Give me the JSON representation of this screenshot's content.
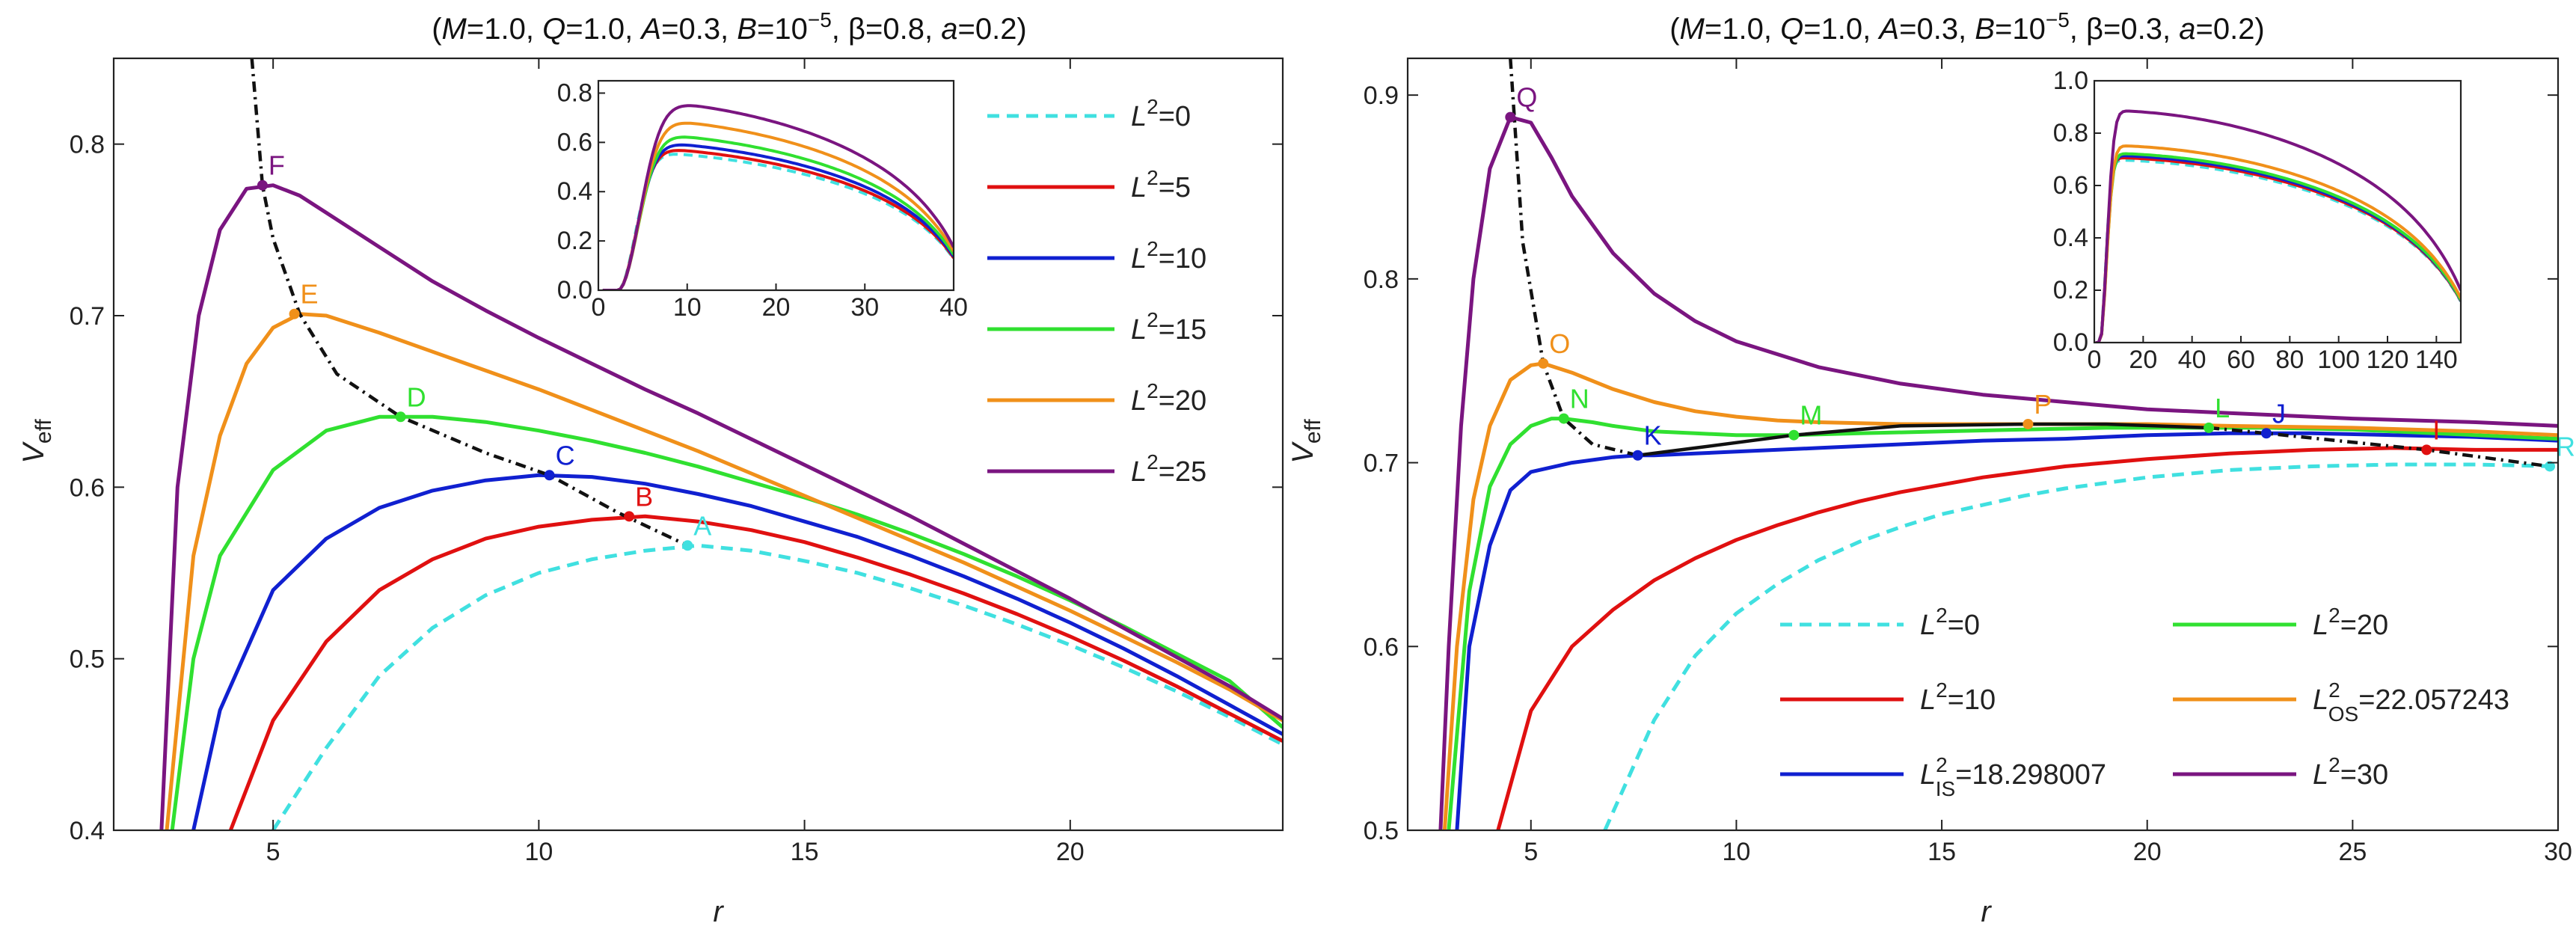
{
  "chart_data": [
    {
      "type": "line",
      "title": "(M=1.0, Q=1.0, A=0.3, B=10^{-5}, β=0.8, a=0.2)",
      "title_parts": {
        "p1": "(",
        "M": "M",
        "p2": "=1.0, ",
        "Q": "Q",
        "p3": "=1.0, ",
        "A": "A",
        "p4": "=0.3, ",
        "B": "B",
        "p5": "=10",
        "Bexp": "−5",
        "p6": ", β=0.8, ",
        "a": "a",
        "p7": "=0.2)"
      },
      "xlabel": "r",
      "ylabel": "V",
      "ylabel_sub": "eff",
      "xlim": [
        2.0,
        24.0
      ],
      "ylim": [
        0.4,
        0.85
      ],
      "xticks": [
        5,
        10,
        15,
        20
      ],
      "yticks": [
        0.4,
        0.5,
        0.6,
        0.7,
        0.8
      ],
      "legend": "top-right",
      "legend_items": [
        {
          "label": "L2=0",
          "sym": "L",
          "sup": "2",
          "rest": "=0",
          "color": "#40E0E0",
          "dashed": true
        },
        {
          "label": "L2=5",
          "sym": "L",
          "sup": "2",
          "rest": "=5",
          "color": "#E01010",
          "dashed": false
        },
        {
          "label": "L2=10",
          "sym": "L",
          "sup": "2",
          "rest": "=10",
          "color": "#1020D0",
          "dashed": false
        },
        {
          "label": "L2=15",
          "sym": "L",
          "sup": "2",
          "rest": "=15",
          "color": "#30E030",
          "dashed": false
        },
        {
          "label": "L2=20",
          "sym": "L",
          "sup": "2",
          "rest": "=20",
          "color": "#F0901A",
          "dashed": false
        },
        {
          "label": "L2=25",
          "sym": "L",
          "sup": "2",
          "rest": "=25",
          "color": "#7A1580",
          "dashed": false
        }
      ],
      "series": [
        {
          "name": "L2=0",
          "color": "#40E0E0",
          "dashed": true,
          "x": [
            5.0,
            6,
            7,
            8,
            9,
            10,
            11,
            12,
            13,
            14,
            15,
            16,
            17,
            18,
            19,
            20,
            21,
            22,
            23,
            24
          ],
          "y": [
            0.4,
            0.448,
            0.49,
            0.518,
            0.537,
            0.55,
            0.558,
            0.563,
            0.566,
            0.563,
            0.557,
            0.55,
            0.541,
            0.531,
            0.52,
            0.508,
            0.495,
            0.481,
            0.466,
            0.45
          ]
        },
        {
          "name": "L2=5",
          "color": "#E01010",
          "dashed": false,
          "x": [
            4.2,
            5,
            6,
            7,
            8,
            9,
            10,
            11,
            12,
            13,
            14,
            15,
            16,
            17,
            18,
            19,
            20,
            21,
            22,
            23,
            24
          ],
          "y": [
            0.4,
            0.464,
            0.51,
            0.54,
            0.558,
            0.57,
            0.577,
            0.581,
            0.583,
            0.58,
            0.575,
            0.568,
            0.559,
            0.549,
            0.538,
            0.526,
            0.513,
            0.499,
            0.484,
            0.468,
            0.452
          ]
        },
        {
          "name": "L2=10",
          "color": "#1020D0",
          "dashed": false,
          "x": [
            3.5,
            4,
            5,
            6,
            7,
            8,
            9,
            10,
            11,
            12,
            13,
            14,
            15,
            16,
            17,
            18,
            19,
            20,
            21,
            22,
            23,
            24
          ],
          "y": [
            0.4,
            0.47,
            0.54,
            0.57,
            0.588,
            0.598,
            0.604,
            0.607,
            0.606,
            0.602,
            0.596,
            0.589,
            0.58,
            0.571,
            0.56,
            0.548,
            0.535,
            0.521,
            0.506,
            0.49,
            0.473,
            0.456
          ]
        },
        {
          "name": "L2=15",
          "color": "#30E030",
          "dashed": false,
          "x": [
            3.1,
            3.5,
            4,
            5,
            6,
            7,
            8,
            9,
            10,
            11,
            12,
            13,
            14,
            15,
            16,
            17,
            18,
            19,
            20,
            21,
            22,
            23,
            24
          ],
          "y": [
            0.4,
            0.5,
            0.56,
            0.61,
            0.633,
            0.641,
            0.641,
            0.638,
            0.633,
            0.627,
            0.62,
            0.612,
            0.603,
            0.594,
            0.584,
            0.573,
            0.561,
            0.548,
            0.534,
            0.519,
            0.503,
            0.487,
            0.46
          ]
        },
        {
          "name": "L2=20",
          "color": "#F0901A",
          "dashed": false,
          "x": [
            3.0,
            3.5,
            4,
            4.5,
            5,
            5.5,
            6,
            7,
            8,
            9,
            10,
            11,
            12,
            13,
            14,
            15,
            16,
            17,
            18,
            19,
            20,
            21,
            22,
            23,
            24
          ],
          "y": [
            0.4,
            0.56,
            0.63,
            0.672,
            0.693,
            0.701,
            0.7,
            0.69,
            0.679,
            0.668,
            0.657,
            0.645,
            0.633,
            0.621,
            0.608,
            0.595,
            0.582,
            0.569,
            0.556,
            0.542,
            0.528,
            0.513,
            0.498,
            0.482,
            0.464
          ]
        },
        {
          "name": "L2=25",
          "color": "#7A1580",
          "dashed": false,
          "x": [
            2.9,
            3.2,
            3.6,
            4,
            4.5,
            5,
            5.5,
            6,
            7,
            8,
            9,
            10,
            11,
            12,
            13,
            14,
            15,
            16,
            17,
            18,
            19,
            20,
            21,
            22,
            23,
            24
          ],
          "y": [
            0.4,
            0.6,
            0.7,
            0.75,
            0.774,
            0.776,
            0.77,
            0.76,
            0.74,
            0.72,
            0.703,
            0.687,
            0.672,
            0.657,
            0.643,
            0.628,
            0.613,
            0.598,
            0.583,
            0.567,
            0.551,
            0.535,
            0.518,
            0.501,
            0.484,
            0.465
          ]
        },
        {
          "name": "extremum locus",
          "color": "#111111",
          "dotdash": true,
          "x": [
            4.6,
            4.8,
            5.0,
            5.5,
            6.2,
            7.4,
            9.0,
            10.2,
            11.5,
            12.8
          ],
          "y": [
            0.85,
            0.776,
            0.745,
            0.701,
            0.666,
            0.641,
            0.62,
            0.607,
            0.585,
            0.566
          ]
        }
      ],
      "points": [
        {
          "label": "A",
          "x": 12.8,
          "y": 0.566,
          "color": "#40E0E0"
        },
        {
          "label": "B",
          "x": 11.7,
          "y": 0.583,
          "color": "#E01010"
        },
        {
          "label": "C",
          "x": 10.2,
          "y": 0.607,
          "color": "#1020D0"
        },
        {
          "label": "D",
          "x": 7.4,
          "y": 0.641,
          "color": "#30E030"
        },
        {
          "label": "E",
          "x": 5.4,
          "y": 0.701,
          "color": "#F0901A"
        },
        {
          "label": "F",
          "x": 4.8,
          "y": 0.776,
          "color": "#7A1580"
        }
      ],
      "inset": {
        "xlim": [
          0,
          40
        ],
        "ylim": [
          0,
          0.85
        ],
        "xticks": [
          0,
          10,
          20,
          30,
          40
        ],
        "yticks": [
          0.0,
          0.2,
          0.4,
          0.6,
          0.8
        ]
      }
    },
    {
      "type": "line",
      "title": "(M=1.0, Q=1.0, A=0.3, B=10^{-5}, β=0.3, a=0.2)",
      "title_parts": {
        "p1": "(",
        "M": "M",
        "p2": "=1.0, ",
        "Q": "Q",
        "p3": "=1.0, ",
        "A": "A",
        "p4": "=0.3, ",
        "B": "B",
        "p5": "=10",
        "Bexp": "−5",
        "p6": ", β=0.3, ",
        "a": "a",
        "p7": "=0.2)"
      },
      "xlabel": "r",
      "ylabel": "V",
      "ylabel_sub": "eff",
      "xlim": [
        2.0,
        30.0
      ],
      "ylim": [
        0.5,
        0.92
      ],
      "xticks": [
        5,
        10,
        15,
        20,
        25,
        30
      ],
      "yticks": [
        0.5,
        0.6,
        0.7,
        0.8,
        0.9
      ],
      "legend": "bottom-right",
      "legend_items": [
        {
          "label": "L2=0",
          "sym": "L",
          "sup": "2",
          "rest": "=0",
          "color": "#40E0E0",
          "dashed": true
        },
        {
          "label": "L2=20",
          "sym": "L",
          "sup": "2",
          "rest": "=20",
          "color": "#30E030",
          "dashed": false
        },
        {
          "label": "L2=10",
          "sym": "L",
          "sup": "2",
          "rest": "=10",
          "color": "#E01010",
          "dashed": false
        },
        {
          "label": "L2OS=22.057243",
          "sym": "L",
          "sup": "2",
          "sub": "OS",
          "rest": "=22.057243",
          "color": "#F0901A",
          "dashed": false
        },
        {
          "label": "L2IS=18.298007",
          "sym": "L",
          "sup": "2",
          "sub": "IS",
          "rest": "=18.298007",
          "color": "#1020D0",
          "dashed": false
        },
        {
          "label": "L2=30",
          "sym": "L",
          "sup": "2",
          "rest": "=30",
          "color": "#7A1580",
          "dashed": false
        }
      ],
      "series": [
        {
          "name": "L2=0",
          "color": "#40E0E0",
          "dashed": true,
          "x": [
            6.8,
            8,
            9,
            10,
            11,
            12,
            13,
            14,
            15,
            16,
            17,
            18,
            19,
            20,
            22,
            24,
            26,
            28,
            30
          ],
          "y": [
            0.5,
            0.56,
            0.595,
            0.618,
            0.634,
            0.647,
            0.657,
            0.665,
            0.672,
            0.677,
            0.682,
            0.686,
            0.689,
            0.692,
            0.696,
            0.698,
            0.699,
            0.699,
            0.698
          ]
        },
        {
          "name": "L2=10",
          "color": "#E01010",
          "dashed": false,
          "x": [
            4.2,
            5,
            6,
            7,
            8,
            9,
            10,
            11,
            12,
            13,
            14,
            15,
            16,
            17,
            18,
            19,
            20,
            22,
            24,
            26,
            28,
            30
          ],
          "y": [
            0.5,
            0.565,
            0.6,
            0.62,
            0.636,
            0.648,
            0.658,
            0.666,
            0.673,
            0.679,
            0.684,
            0.688,
            0.692,
            0.695,
            0.698,
            0.7,
            0.702,
            0.705,
            0.707,
            0.708,
            0.707,
            0.707
          ]
        },
        {
          "name": "L2IS=18.298007",
          "color": "#1020D0",
          "dashed": false,
          "x": [
            3.2,
            3.5,
            4,
            4.5,
            5,
            6,
            7,
            7.6,
            8,
            9,
            10,
            12,
            14,
            16,
            18,
            20,
            22,
            22.9,
            24,
            26,
            28,
            30
          ],
          "y": [
            0.5,
            0.6,
            0.655,
            0.685,
            0.695,
            0.7,
            0.703,
            0.704,
            0.704,
            0.705,
            0.706,
            0.708,
            0.71,
            0.712,
            0.713,
            0.715,
            0.716,
            0.716,
            0.716,
            0.715,
            0.714,
            0.712
          ]
        },
        {
          "name": "L2=20",
          "color": "#30E030",
          "dashed": false,
          "x": [
            3.0,
            3.5,
            4,
            4.5,
            5,
            5.5,
            5.8,
            6.5,
            7,
            8,
            9,
            10,
            11.4,
            13,
            15,
            17,
            19,
            21,
            21.5,
            23,
            25,
            27,
            30
          ],
          "y": [
            0.5,
            0.63,
            0.687,
            0.71,
            0.72,
            0.724,
            0.724,
            0.722,
            0.72,
            0.717,
            0.716,
            0.715,
            0.715,
            0.716,
            0.717,
            0.718,
            0.719,
            0.719,
            0.719,
            0.719,
            0.718,
            0.716,
            0.713
          ]
        },
        {
          "name": "L2OS=22.057243",
          "color": "#F0901A",
          "dashed": false,
          "x": [
            2.9,
            3.2,
            3.6,
            4,
            4.5,
            5,
            5.3,
            6,
            7,
            8,
            9,
            10,
            11,
            12,
            14,
            16,
            17.1,
            18,
            20,
            22,
            25,
            28,
            30
          ],
          "y": [
            0.5,
            0.6,
            0.68,
            0.72,
            0.745,
            0.753,
            0.754,
            0.749,
            0.74,
            0.733,
            0.728,
            0.725,
            0.723,
            0.722,
            0.721,
            0.721,
            0.721,
            0.721,
            0.721,
            0.72,
            0.719,
            0.717,
            0.715
          ]
        },
        {
          "name": "L2=30",
          "color": "#7A1580",
          "dashed": false,
          "x": [
            2.8,
            3.0,
            3.3,
            3.6,
            4.0,
            4.5,
            5.0,
            5.5,
            6,
            7,
            8,
            9,
            10,
            12,
            14,
            16,
            18,
            20,
            22,
            25,
            28,
            30
          ],
          "y": [
            0.5,
            0.6,
            0.72,
            0.8,
            0.86,
            0.888,
            0.885,
            0.866,
            0.845,
            0.814,
            0.792,
            0.777,
            0.766,
            0.752,
            0.743,
            0.737,
            0.733,
            0.729,
            0.727,
            0.724,
            0.722,
            0.72
          ]
        },
        {
          "name": "stable locus",
          "color": "#111111",
          "dotdash": false,
          "x": [
            7.6,
            9,
            11.4,
            14,
            17.1,
            19,
            21.5
          ],
          "y": [
            0.704,
            0.708,
            0.715,
            0.72,
            0.721,
            0.721,
            0.719
          ]
        },
        {
          "name": "unstable locus",
          "color": "#111111",
          "dotdash": true,
          "x": [
            4.5,
            4.8,
            5.3,
            5.8,
            6.5,
            7.6
          ],
          "y": [
            0.92,
            0.82,
            0.754,
            0.724,
            0.71,
            0.704
          ]
        },
        {
          "name": "unstable outer locus",
          "color": "#111111",
          "dotdash": true,
          "x": [
            21.5,
            22.9,
            26.8,
            29.8
          ],
          "y": [
            0.719,
            0.716,
            0.707,
            0.698
          ]
        }
      ],
      "points": [
        {
          "label": "K",
          "x": 7.6,
          "y": 0.704,
          "color": "#1020D0"
        },
        {
          "label": "J",
          "x": 22.9,
          "y": 0.716,
          "color": "#1020D0"
        },
        {
          "label": "M",
          "x": 11.4,
          "y": 0.715,
          "color": "#30E030"
        },
        {
          "label": "N",
          "x": 5.8,
          "y": 0.724,
          "color": "#30E030"
        },
        {
          "label": "L",
          "x": 21.5,
          "y": 0.719,
          "color": "#30E030"
        },
        {
          "label": "O",
          "x": 5.3,
          "y": 0.754,
          "color": "#F0901A"
        },
        {
          "label": "P",
          "x": 17.1,
          "y": 0.721,
          "color": "#F0901A"
        },
        {
          "label": "Q",
          "x": 4.5,
          "y": 0.888,
          "color": "#7A1580"
        },
        {
          "label": "I",
          "x": 26.8,
          "y": 0.707,
          "color": "#E01010"
        },
        {
          "label": "R",
          "x": 29.8,
          "y": 0.698,
          "color": "#40E0E0"
        }
      ],
      "inset": {
        "xlim": [
          0,
          150
        ],
        "ylim": [
          0,
          1.0
        ],
        "xticks": [
          0,
          20,
          40,
          60,
          80,
          100,
          120,
          140
        ],
        "yticks": [
          0.0,
          0.2,
          0.4,
          0.6,
          0.8,
          1.0
        ]
      }
    }
  ]
}
